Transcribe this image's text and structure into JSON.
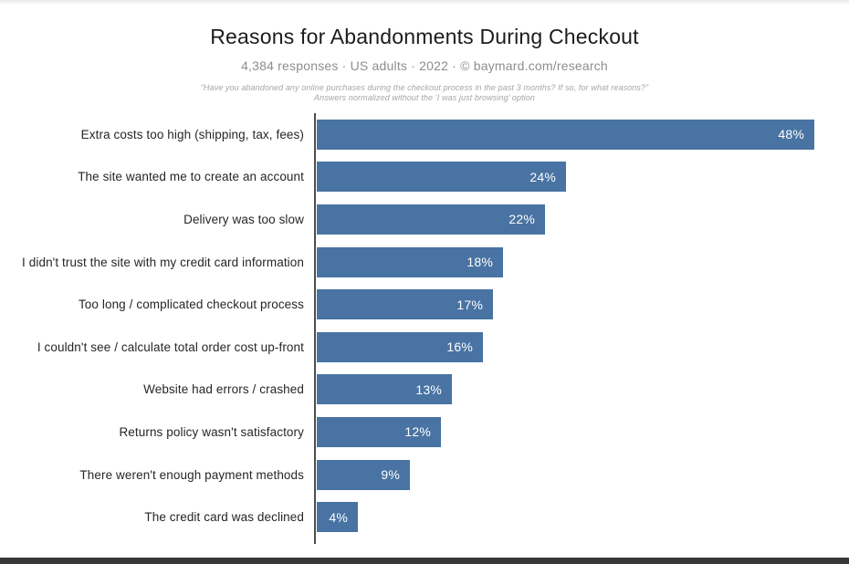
{
  "header": {
    "title": "Reasons for Abandonments During Checkout",
    "subtitle": "4,384 responses  ·  US adults  ·  2022  ·  ©  baymard.com/research",
    "question_line1": "“Have you abandoned any online purchases during the checkout process in the past 3 months? If so, for what reasons?”",
    "question_line2": "Answers normalized without the ‘I was just browsing’ option"
  },
  "chart_data": {
    "type": "bar",
    "orientation": "horizontal",
    "title": "Reasons for Abandonments During Checkout",
    "subtitle": "4,384 responses · US adults · 2022 · © baymard.com/research",
    "categories": [
      "Extra costs too high (shipping, tax, fees)",
      "The site wanted me to create an account",
      "Delivery was too slow",
      "I didn't trust the site with my credit card information",
      "Too long / complicated checkout process",
      "I couldn't see / calculate total order cost up-front",
      "Website had errors / crashed",
      "Returns policy wasn't satisfactory",
      "There weren't enough payment methods",
      "The credit card was declined"
    ],
    "values": [
      48,
      24,
      22,
      18,
      17,
      16,
      13,
      12,
      9,
      4
    ],
    "value_suffix": "%",
    "xlabel": "",
    "ylabel": "",
    "xlim": [
      0,
      48
    ],
    "grid": false,
    "legend": "none",
    "value_label_position": "inside-end",
    "colors": {
      "bar": "#4973a3",
      "axis": "#4d4d4d",
      "value_label": "#ffffff",
      "category_label": "#262626"
    }
  }
}
